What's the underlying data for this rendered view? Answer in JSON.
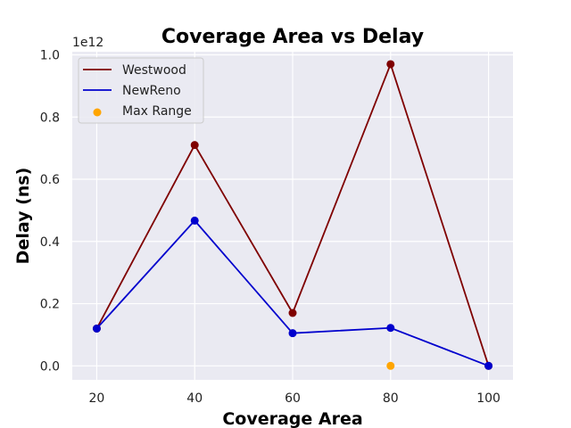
{
  "chart_data": {
    "type": "line",
    "title": "Coverage Area vs Delay",
    "xlabel": "Coverage Area",
    "ylabel": "Delay (ns)",
    "y_offset_label": "1e12",
    "x": [
      20,
      40,
      60,
      80,
      100
    ],
    "xlim": [
      15,
      105
    ],
    "ylim": [
      -0.045,
      1.01
    ],
    "x_ticks": [
      20,
      40,
      60,
      80,
      100
    ],
    "y_ticks": [
      0.0,
      0.2,
      0.4,
      0.6,
      0.8,
      1.0
    ],
    "y_tick_labels": [
      "0.0",
      "0.2",
      "0.4",
      "0.6",
      "0.8",
      "1.0"
    ],
    "y_scale_factor": 1000000000000.0,
    "grid": true,
    "legend_position": "top-left",
    "series": [
      {
        "name": "Westwood",
        "kind": "line",
        "color": "#7f0000",
        "values": [
          0.12,
          0.71,
          0.17,
          0.97,
          0.0
        ]
      },
      {
        "name": "NewReno",
        "kind": "line",
        "color": "#0000cd",
        "values": [
          0.12,
          0.467,
          0.105,
          0.122,
          0.0
        ]
      },
      {
        "name": "Max Range",
        "kind": "scatter",
        "color": "#ffa500",
        "points": [
          {
            "x": 80,
            "y": 0.0
          }
        ]
      }
    ]
  }
}
